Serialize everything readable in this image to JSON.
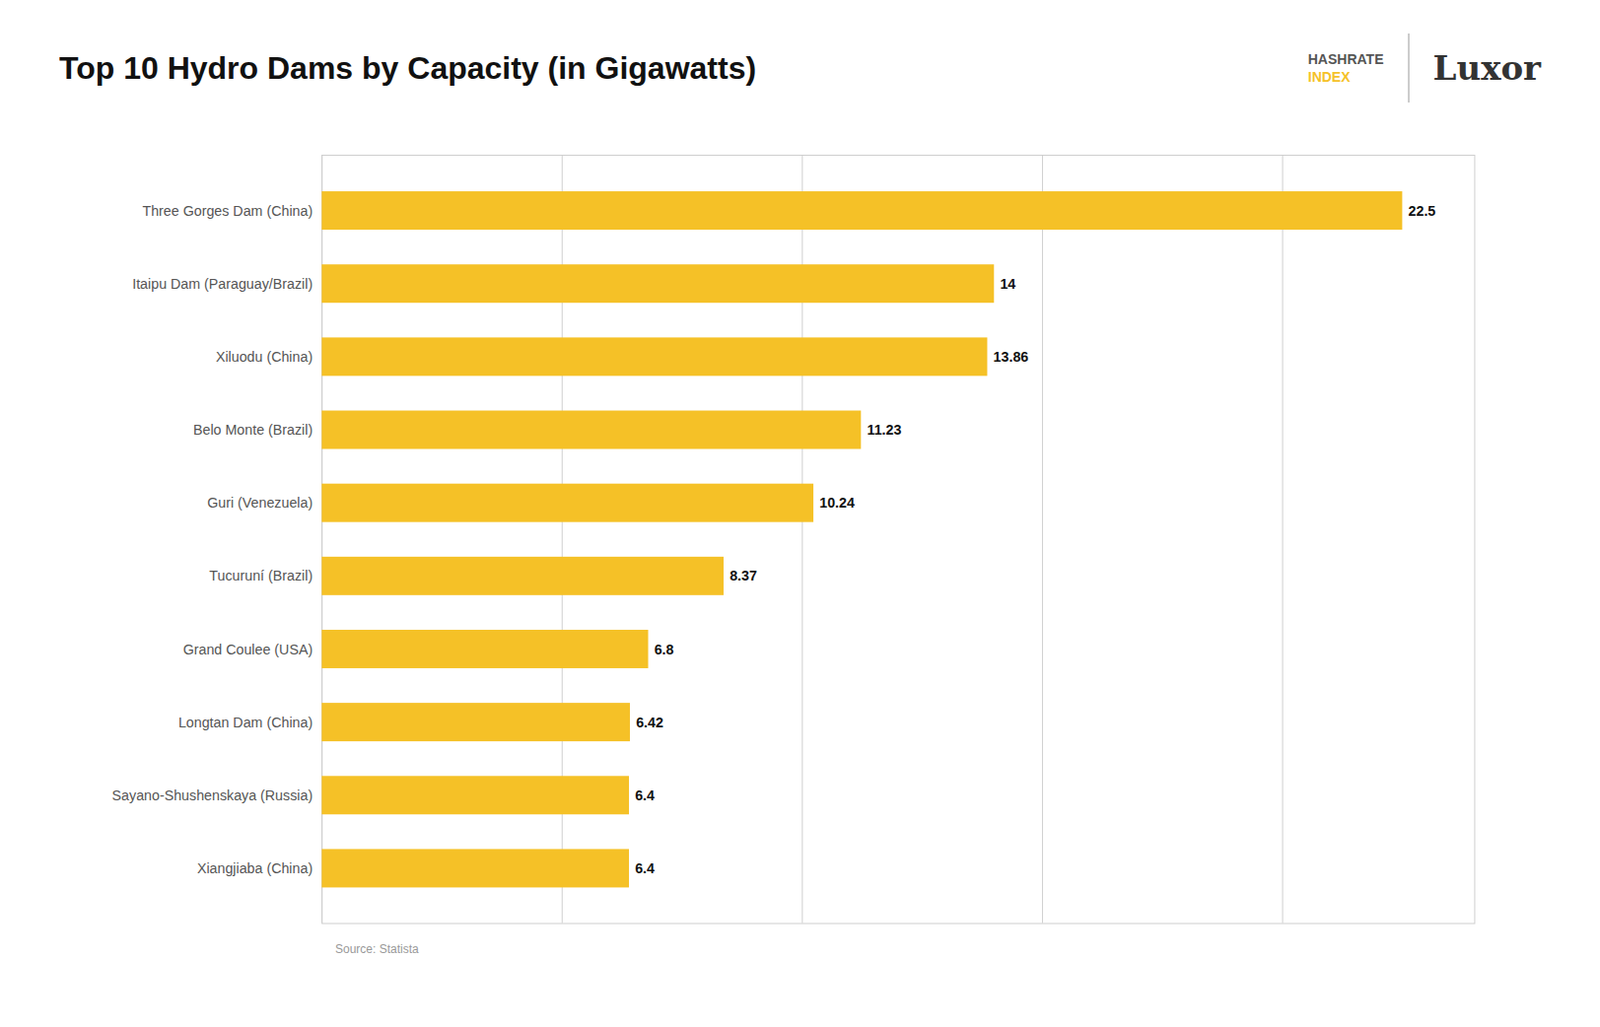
{
  "chart_data": {
    "type": "bar",
    "orientation": "horizontal",
    "title": "Top 10 Hydro Dams by Capacity (in Gigawatts)",
    "categories": [
      "Three Gorges Dam (China)",
      "Itaipu Dam (Paraguay/Brazil)",
      "Xiluodu (China)",
      "Belo Monte (Brazil)",
      "Guri (Venezuela)",
      "Tucuruní (Brazil)",
      "Grand Coulee (USA)",
      "Longtan Dam (China)",
      "Sayano-Shushenskaya (Russia)",
      "Xiangjiaba (China)"
    ],
    "values": [
      22.5,
      14,
      13.86,
      11.23,
      10.24,
      8.37,
      6.8,
      6.42,
      6.4,
      6.4
    ],
    "color": "#F5C127",
    "xlim": [
      0,
      24
    ],
    "xticks": [
      0,
      5,
      10,
      15,
      20
    ],
    "grid": true,
    "data_labels": true,
    "tick_labels": "y",
    "annotations": [
      "HASHRATE",
      "INDEX",
      "Luxor"
    ],
    "caption": "Source: Statista"
  }
}
